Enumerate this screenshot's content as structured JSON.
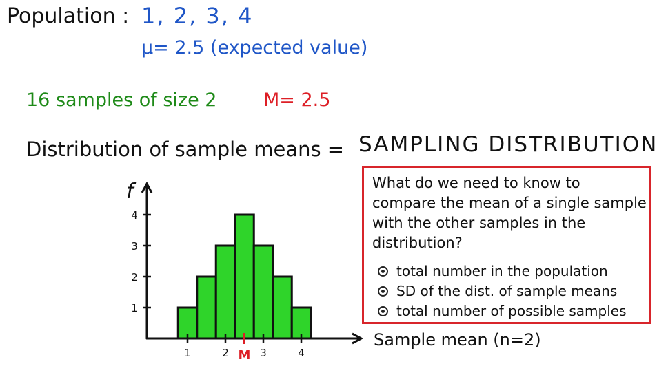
{
  "population": {
    "label": "Population :",
    "values": "1,  2,  3,  4",
    "expected_value": "μ= 2.5  (expected value)"
  },
  "samples": {
    "text": "16 samples of size 2",
    "mean": "M= 2.5"
  },
  "heading": {
    "left": "Distribution of sample means  =",
    "right": "SAMPLING DISTRIBUTION"
  },
  "question_box": {
    "question": "What do we need to know to compare the mean of a single sample with the other samples in the distribution?",
    "options": [
      "total number in the population",
      "SD of the dist. of sample means",
      "total number of possible samples"
    ]
  },
  "colors": {
    "bar_fill": "#2fd42a",
    "bar_stroke": "#111111",
    "mean_marker": "#dd1f26",
    "box_border": "#d8252b"
  },
  "chart_data": {
    "type": "bar",
    "ylabel": "f",
    "xlabel": "Sample mean (n=2)",
    "x_ticks": [
      1,
      2,
      3,
      4
    ],
    "y_ticks": [
      1,
      2,
      3,
      4
    ],
    "mean_marker_label": "M",
    "mean_value": 2.5,
    "bars": [
      {
        "x": 1.0,
        "f": 1
      },
      {
        "x": 1.5,
        "f": 2
      },
      {
        "x": 2.0,
        "f": 3
      },
      {
        "x": 2.5,
        "f": 4
      },
      {
        "x": 3.0,
        "f": 3
      },
      {
        "x": 3.5,
        "f": 2
      },
      {
        "x": 4.0,
        "f": 1
      }
    ],
    "xlim": [
      0.5,
      4.5
    ],
    "ylim": [
      0,
      4.5
    ],
    "grid": false
  }
}
